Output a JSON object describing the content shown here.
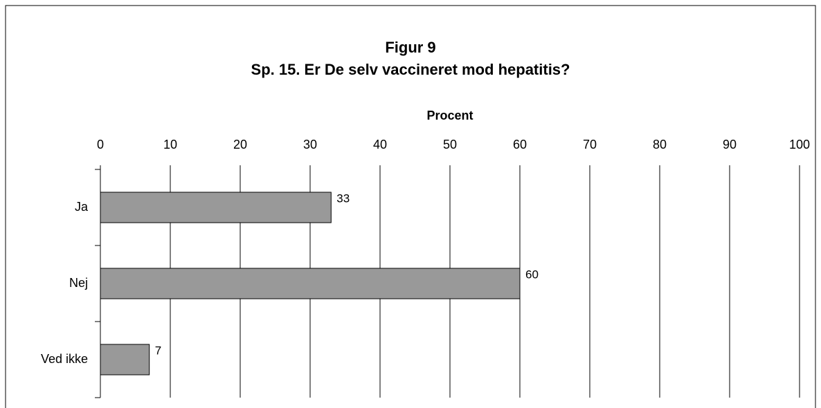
{
  "chart_data": {
    "type": "hbar",
    "title": "Figur 9",
    "subtitle": "Sp. 15. Er De selv vaccineret mod hepatitis?",
    "x_label": "Procent",
    "categories": [
      "Ja",
      "Nej",
      "Ved ikke"
    ],
    "values": [
      33,
      60,
      7
    ],
    "color": "#999999",
    "xlim": [
      0,
      100
    ],
    "xticks": [
      0,
      10,
      20,
      30,
      40,
      50,
      60,
      70,
      80,
      90,
      100
    ],
    "grid": true
  }
}
